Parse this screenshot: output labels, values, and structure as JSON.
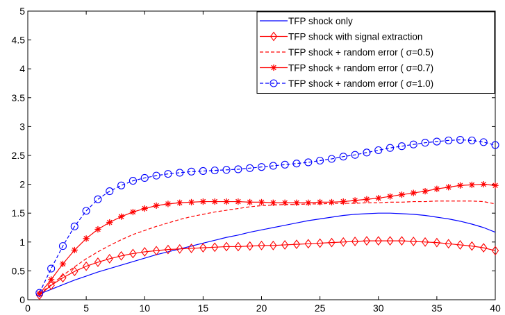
{
  "chart_data": {
    "type": "line",
    "title": "",
    "xlabel": "",
    "ylabel": "",
    "xlim": [
      0,
      40
    ],
    "ylim": [
      0,
      5
    ],
    "xticks": [
      0,
      5,
      10,
      15,
      20,
      25,
      30,
      35,
      40
    ],
    "yticks": [
      0,
      0.5,
      1,
      1.5,
      2,
      2.5,
      3,
      3.5,
      4,
      4.5,
      5
    ],
    "xtick_labels": [
      "0",
      "5",
      "10",
      "15",
      "20",
      "25",
      "30",
      "35",
      "40"
    ],
    "ytick_labels": [
      "0",
      "0.5",
      "1",
      "1.5",
      "2",
      "2.5",
      "3",
      "3.5",
      "4",
      "4.5",
      "5"
    ],
    "grid": false,
    "legend_position": "top-right",
    "x": [
      1,
      2,
      3,
      4,
      5,
      6,
      7,
      8,
      9,
      10,
      11,
      12,
      13,
      14,
      15,
      16,
      17,
      18,
      19,
      20,
      21,
      22,
      23,
      24,
      25,
      26,
      27,
      28,
      29,
      30,
      31,
      32,
      33,
      34,
      35,
      36,
      37,
      38,
      39,
      40
    ],
    "series": [
      {
        "name": "TFP shock only",
        "color": "#0000ff",
        "line": "solid",
        "marker": "none",
        "values": [
          0.1,
          0.18,
          0.26,
          0.34,
          0.41,
          0.48,
          0.54,
          0.6,
          0.66,
          0.72,
          0.78,
          0.83,
          0.88,
          0.93,
          0.98,
          1.03,
          1.08,
          1.12,
          1.17,
          1.21,
          1.25,
          1.29,
          1.33,
          1.37,
          1.4,
          1.43,
          1.46,
          1.48,
          1.49,
          1.5,
          1.5,
          1.49,
          1.48,
          1.46,
          1.43,
          1.4,
          1.36,
          1.31,
          1.25,
          1.17
        ]
      },
      {
        "name": "TFP shock with signal extraction",
        "color": "#ff0000",
        "line": "solid",
        "marker": "diamond",
        "values": [
          0.08,
          0.25,
          0.38,
          0.49,
          0.58,
          0.65,
          0.71,
          0.76,
          0.8,
          0.83,
          0.85,
          0.87,
          0.88,
          0.89,
          0.9,
          0.91,
          0.92,
          0.92,
          0.93,
          0.94,
          0.94,
          0.95,
          0.96,
          0.97,
          0.98,
          0.99,
          1.0,
          1.01,
          1.02,
          1.02,
          1.02,
          1.02,
          1.01,
          1.0,
          0.99,
          0.97,
          0.95,
          0.93,
          0.9,
          0.85
        ]
      },
      {
        "name": "TFP shock + random error ( σ=0.5)",
        "color": "#ff0000",
        "line": "dashed",
        "marker": "none",
        "values": [
          0.1,
          0.26,
          0.42,
          0.57,
          0.71,
          0.83,
          0.94,
          1.04,
          1.13,
          1.2,
          1.27,
          1.33,
          1.39,
          1.44,
          1.48,
          1.52,
          1.55,
          1.58,
          1.61,
          1.63,
          1.64,
          1.65,
          1.65,
          1.66,
          1.66,
          1.67,
          1.67,
          1.67,
          1.68,
          1.68,
          1.69,
          1.69,
          1.7,
          1.7,
          1.71,
          1.71,
          1.71,
          1.71,
          1.7,
          1.66
        ]
      },
      {
        "name": "TFP shock + random error ( σ=0.7)",
        "color": "#ff0000",
        "line": "solid",
        "marker": "star",
        "values": [
          0.1,
          0.35,
          0.62,
          0.86,
          1.06,
          1.22,
          1.34,
          1.44,
          1.52,
          1.58,
          1.63,
          1.66,
          1.68,
          1.69,
          1.7,
          1.7,
          1.7,
          1.7,
          1.69,
          1.69,
          1.68,
          1.68,
          1.68,
          1.68,
          1.69,
          1.69,
          1.7,
          1.72,
          1.74,
          1.76,
          1.79,
          1.82,
          1.85,
          1.88,
          1.92,
          1.95,
          1.98,
          1.99,
          2.0,
          1.98
        ]
      },
      {
        "name": "TFP shock + random error ( σ=1.0)",
        "color": "#0000ff",
        "line": "dashed",
        "marker": "circle",
        "values": [
          0.12,
          0.54,
          0.93,
          1.27,
          1.54,
          1.74,
          1.88,
          1.98,
          2.06,
          2.11,
          2.15,
          2.18,
          2.2,
          2.22,
          2.23,
          2.24,
          2.25,
          2.26,
          2.28,
          2.3,
          2.32,
          2.34,
          2.36,
          2.38,
          2.41,
          2.44,
          2.48,
          2.51,
          2.55,
          2.59,
          2.63,
          2.66,
          2.69,
          2.72,
          2.74,
          2.76,
          2.77,
          2.76,
          2.73,
          2.68
        ]
      }
    ]
  }
}
